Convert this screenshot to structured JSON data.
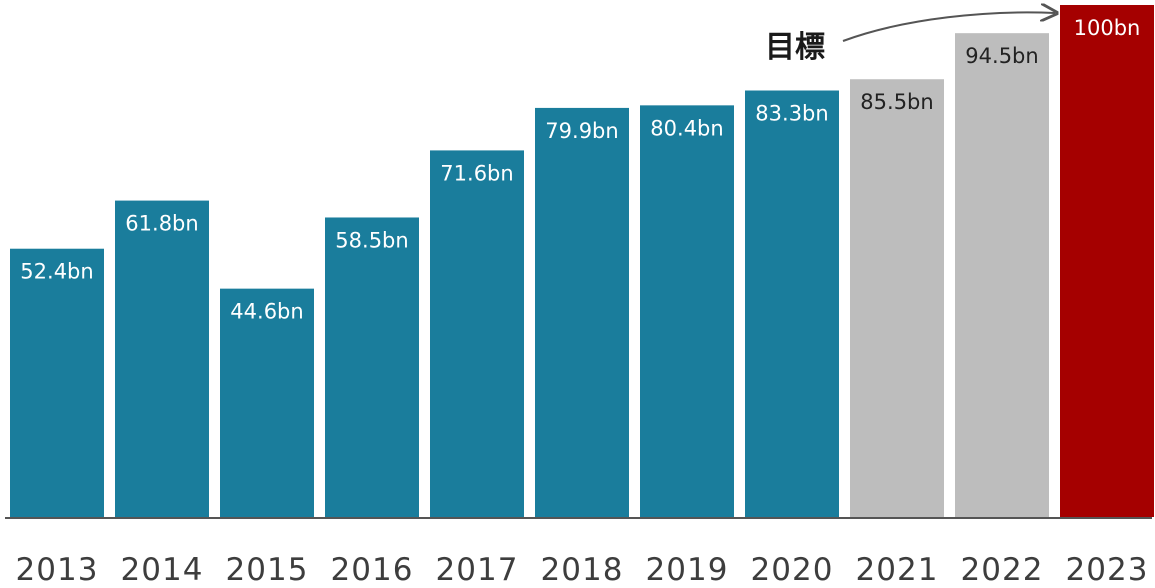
{
  "chart_data": {
    "type": "bar",
    "categories": [
      "2013",
      "2014",
      "2015",
      "2016",
      "2017",
      "2018",
      "2019",
      "2020",
      "2021",
      "2022",
      "2023"
    ],
    "values": [
      52.4,
      61.8,
      44.6,
      58.5,
      71.6,
      79.9,
      80.4,
      83.3,
      85.5,
      94.5,
      100
    ],
    "value_labels": [
      "52.4bn",
      "61.8bn",
      "44.6bn",
      "58.5bn",
      "71.6bn",
      "79.9bn",
      "80.4bn",
      "83.3bn",
      "85.5bn",
      "94.5bn",
      "100bn"
    ],
    "bar_colors": [
      "#1a7d9c",
      "#1a7d9c",
      "#1a7d9c",
      "#1a7d9c",
      "#1a7d9c",
      "#1a7d9c",
      "#1a7d9c",
      "#1a7d9c",
      "#bdbdbd",
      "#bdbdbd",
      "#a50000"
    ],
    "label_colors": [
      "#ffffff",
      "#ffffff",
      "#ffffff",
      "#ffffff",
      "#ffffff",
      "#ffffff",
      "#ffffff",
      "#ffffff",
      "#222222",
      "#222222",
      "#ffffff"
    ],
    "annotation": {
      "text": "目標",
      "target_category": "2023"
    },
    "ylim": [
      0,
      100
    ],
    "grid": false,
    "title": "",
    "xlabel": "",
    "ylabel": ""
  },
  "colors": {
    "baseline": "#555555",
    "year_text": "#3d3d3d",
    "arrow": "#555555"
  }
}
